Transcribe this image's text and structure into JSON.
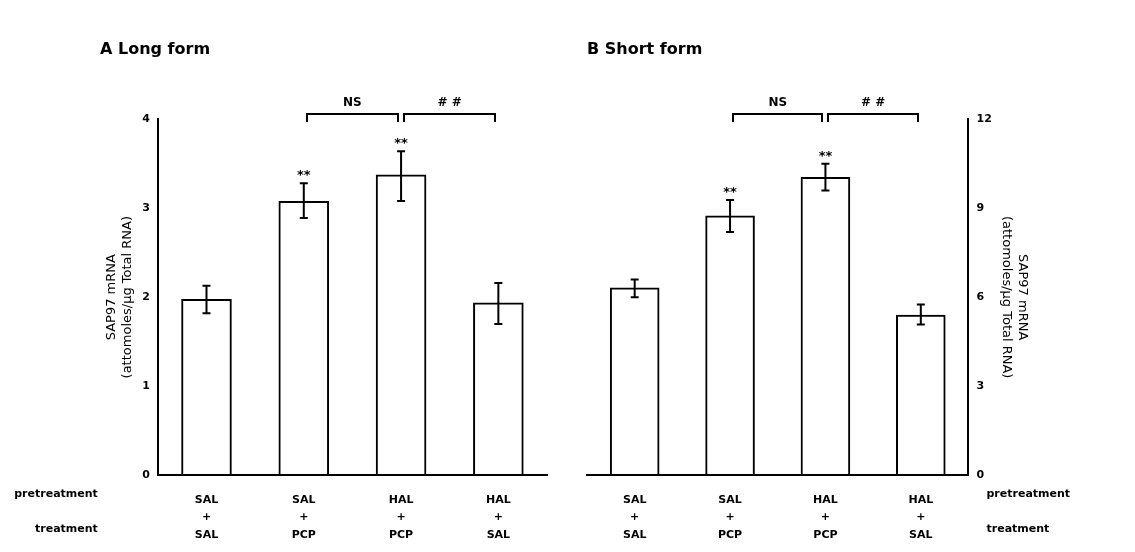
{
  "chart_data": [
    {
      "type": "bar",
      "title": "A Long form",
      "ylabel": "SAP97 mRNA\n(attomoles/µg Total RNA)",
      "categories": [
        "SAL\n+\nSAL",
        "SAL\n+\nPCP",
        "HAL\n+\nPCP",
        "HAL\n+\nSAL"
      ],
      "series": [
        {
          "color": "#000000",
          "values": [
            1.98,
            3.08,
            3.38,
            1.94
          ],
          "errors": [
            [
              1.82,
              2.13
            ],
            [
              2.89,
              3.28
            ],
            [
              3.08,
              3.64
            ],
            [
              1.7,
              2.16
            ]
          ],
          "value_labels": [
            null,
            "**",
            "**",
            null
          ]
        }
      ],
      "ylim": [
        0,
        4
      ],
      "yticks": [
        0,
        1,
        2,
        3,
        4
      ],
      "grid": false,
      "legend": false,
      "annotations": [
        "pretreatment",
        "treatment",
        "NS",
        "# #"
      ]
    },
    {
      "type": "bar",
      "title": "B Short form",
      "y2label": "SAP97 mRNA\n(attomoles/µg Total RNA)",
      "categories": [
        "SAL\n+\nSAL",
        "SAL\n+\nPCP",
        "HAL\n+\nPCP",
        "HAL\n+\nSAL"
      ],
      "series": [
        {
          "color": "#000000",
          "axis": "y2",
          "values": [
            6.33,
            8.75,
            10.05,
            5.41
          ],
          "errors": [
            [
              6.0,
              6.6
            ],
            [
              8.2,
              9.28
            ],
            [
              9.6,
              10.5
            ],
            [
              5.08,
              5.75
            ]
          ],
          "value_labels": [
            null,
            "**",
            "**",
            null
          ]
        }
      ],
      "y2lim": [
        0,
        12
      ],
      "y2ticks": [
        0,
        3,
        6,
        9,
        12
      ],
      "grid": false,
      "legend": false,
      "annotations": [
        "pretreatment",
        "treatment",
        "NS",
        "# #"
      ]
    }
  ]
}
